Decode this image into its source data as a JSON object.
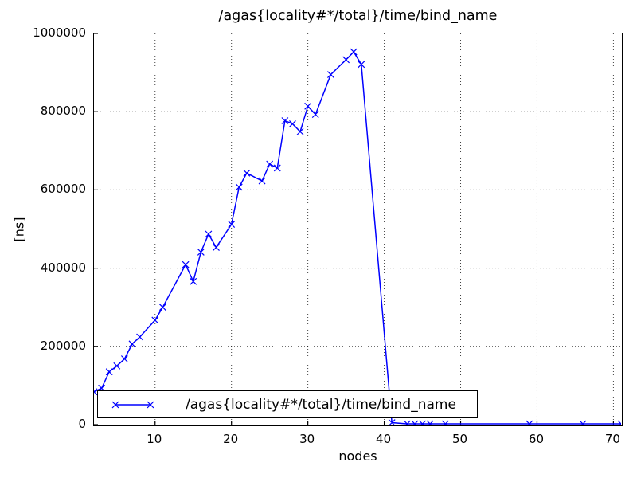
{
  "chart_data": {
    "type": "line",
    "title": "/agas{locality#*/total}/time/bind_name",
    "xlabel": "nodes",
    "ylabel": "[ns]",
    "xlim": [
      2,
      71
    ],
    "ylim": [
      0,
      1000000
    ],
    "xticks": [
      10,
      20,
      30,
      40,
      50,
      60,
      70
    ],
    "yticks": [
      0,
      200000,
      400000,
      600000,
      800000,
      1000000
    ],
    "grid": true,
    "grid_style": "dotted",
    "line_color": "#0000ff",
    "marker": "x",
    "legend": {
      "position": "lower left",
      "label": "/agas{locality#*/total}/time/bind_name"
    },
    "series": [
      {
        "name": "/agas{locality#*/total}/time/bind_name",
        "x": [
          2,
          3,
          4,
          5,
          6,
          7,
          8,
          10,
          11,
          14,
          15,
          16,
          17,
          18,
          20,
          21,
          22,
          24,
          25,
          26,
          27,
          28,
          29,
          30,
          31,
          33,
          35,
          36,
          37,
          41,
          43,
          44,
          45,
          46,
          48,
          59,
          66,
          71
        ],
        "y": [
          84000,
          93000,
          135000,
          150000,
          168000,
          206000,
          224000,
          267000,
          300000,
          409000,
          366000,
          441000,
          487000,
          453000,
          512000,
          607000,
          643000,
          623000,
          666000,
          656000,
          777000,
          769000,
          749000,
          814000,
          793000,
          895000,
          933000,
          953000,
          921000,
          5000,
          2000,
          2000,
          2000,
          2000,
          2000,
          2000,
          2000,
          2000
        ]
      }
    ]
  }
}
